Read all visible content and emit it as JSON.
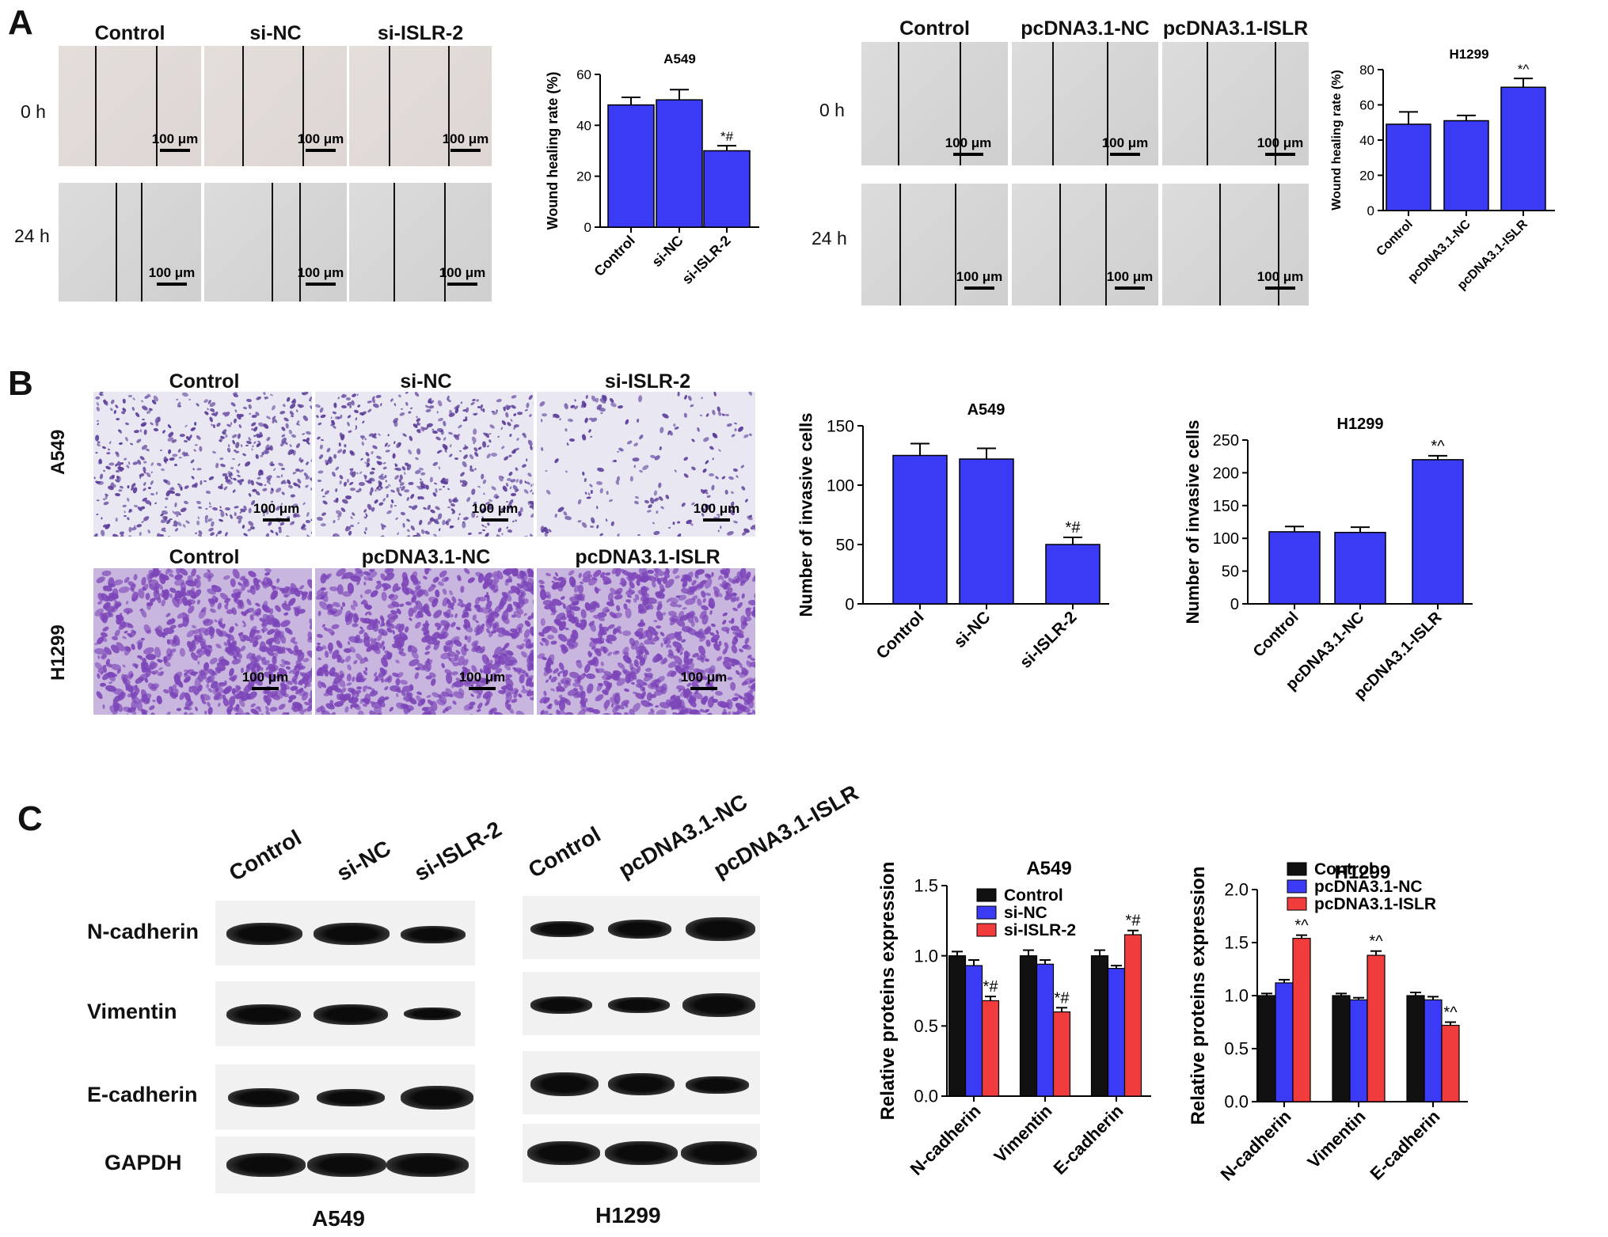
{
  "panels": {
    "a": "A",
    "b": "B",
    "c": "C"
  },
  "wound": {
    "row_labels": [
      "0 h",
      "24 h"
    ],
    "left_cols": [
      "Control",
      "si-NC",
      "si-ISLR-2"
    ],
    "right_cols": [
      "Control",
      "pcDNA3.1-NC",
      "pcDNA3.1-ISLR"
    ],
    "scale_bar": "100 μm"
  },
  "transwell": {
    "a549_cols": [
      "Control",
      "si-NC",
      "si-ISLR-2"
    ],
    "h1299_cols": [
      "Control",
      "pcDNA3.1-NC",
      "pcDNA3.1-ISLR"
    ],
    "row_labels": [
      "A549",
      "H1299"
    ],
    "scale_bar": "100 μm"
  },
  "western": {
    "a549_cols": [
      "Control",
      "si-NC",
      "si-ISLR-2"
    ],
    "h1299_cols": [
      "Control",
      "pcDNA3.1-NC",
      "pcDNA3.1-ISLR"
    ],
    "proteins": [
      "N-cadherin",
      "Vimentin",
      "E-cadherin",
      "GAPDH"
    ],
    "cell_lines": [
      "A549",
      "H1299"
    ]
  },
  "colors": {
    "bar_blue": "#3b3bf5",
    "black": "#111111",
    "red": "#f03c3c"
  },
  "chart_data": [
    {
      "type": "bar",
      "title": "A549",
      "ylabel": "Wound healing rate (%)",
      "categories": [
        "Control",
        "si-NC",
        "si-ISLR-2"
      ],
      "values": [
        48,
        50,
        30
      ],
      "errors": [
        3,
        4,
        2
      ],
      "annotations": [
        "",
        "",
        "*#"
      ],
      "ylim": [
        0,
        60
      ],
      "yticks": [
        0,
        20,
        40,
        60
      ]
    },
    {
      "type": "bar",
      "title": "H1299",
      "ylabel": "Wound healing rate (%)",
      "categories": [
        "Control",
        "pcDNA3.1-NC",
        "pcDNA3.1-ISLR"
      ],
      "values": [
        49,
        51,
        70
      ],
      "errors": [
        7,
        3,
        5
      ],
      "annotations": [
        "",
        "",
        "*^"
      ],
      "ylim": [
        0,
        80
      ],
      "yticks": [
        0,
        20,
        40,
        60,
        80
      ]
    },
    {
      "type": "bar",
      "title": "A549",
      "ylabel": "Number of invasive cells",
      "categories": [
        "Control",
        "si-NC",
        "si-ISLR-2"
      ],
      "values": [
        125,
        122,
        50
      ],
      "errors": [
        10,
        9,
        6
      ],
      "annotations": [
        "",
        "",
        "*#"
      ],
      "ylim": [
        0,
        150
      ],
      "yticks": [
        0,
        50,
        100,
        150
      ]
    },
    {
      "type": "bar",
      "title": "H1299",
      "ylabel": "Number of invasive cells",
      "categories": [
        "Control",
        "pcDNA3.1-NC",
        "pcDNA3.1-ISLR"
      ],
      "values": [
        110,
        109,
        220
      ],
      "errors": [
        8,
        8,
        6
      ],
      "annotations": [
        "",
        "",
        "*^"
      ],
      "ylim": [
        0,
        250
      ],
      "yticks": [
        0,
        50,
        100,
        150,
        200,
        250
      ]
    },
    {
      "type": "bar",
      "title": "A549",
      "ylabel": "Relative proteins expression",
      "categories": [
        "N-cadherin",
        "Vimentin",
        "E-cadherin"
      ],
      "series": [
        {
          "name": "Control",
          "values": [
            1.0,
            1.0,
            1.0
          ],
          "errors": [
            0.03,
            0.04,
            0.04
          ]
        },
        {
          "name": "si-NC",
          "values": [
            0.93,
            0.94,
            0.91
          ],
          "errors": [
            0.04,
            0.03,
            0.02
          ]
        },
        {
          "name": "si-ISLR-2",
          "values": [
            0.68,
            0.6,
            1.15
          ],
          "errors": [
            0.03,
            0.03,
            0.03
          ]
        }
      ],
      "annotations": [
        "*#",
        "*#",
        "*#"
      ],
      "ylim": [
        0,
        1.5
      ],
      "yticks": [
        "0.0",
        "0.5",
        "1.0",
        "1.5"
      ],
      "legend": "top-left"
    },
    {
      "type": "bar",
      "title": "H1299",
      "ylabel": "Relative proteins expression",
      "categories": [
        "N-cadherin",
        "Vimentin",
        "E-cadherin"
      ],
      "series": [
        {
          "name": "Control",
          "values": [
            1.0,
            1.0,
            1.0
          ],
          "errors": [
            0.02,
            0.02,
            0.03
          ]
        },
        {
          "name": "pcDNA3.1-NC",
          "values": [
            1.12,
            0.96,
            0.96
          ],
          "errors": [
            0.03,
            0.02,
            0.03
          ]
        },
        {
          "name": "pcDNA3.1-ISLR",
          "values": [
            1.54,
            1.38,
            0.72
          ],
          "errors": [
            0.03,
            0.04,
            0.03
          ]
        }
      ],
      "annotations": [
        "*^",
        "*^",
        "*^"
      ],
      "ylim": [
        0,
        2.0
      ],
      "yticks": [
        "0.0",
        "0.5",
        "1.0",
        "1.5",
        "2.0"
      ],
      "legend": "top-left"
    }
  ]
}
